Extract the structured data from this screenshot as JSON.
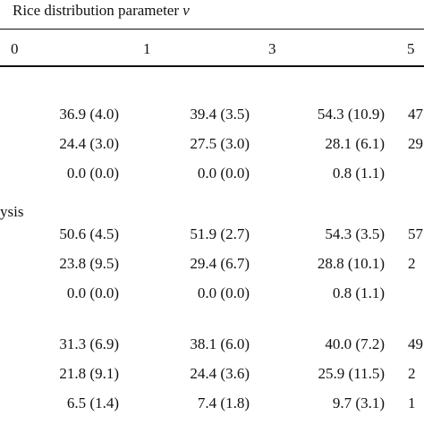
{
  "table": {
    "caption": "Rice distribution parameter ",
    "caption_var": "v",
    "header": [
      "0",
      "1",
      "3",
      "5"
    ],
    "sections": [
      {
        "rows": [
          [
            "36.9 (4.0)",
            "39.4 (3.5)",
            "54.3 (10.9)",
            "47"
          ],
          [
            "24.4 (3.0)",
            "27.5 (3.0)",
            "28.1 (6.1)",
            "29"
          ],
          [
            "0.0 (0.0)",
            "0.0 (0.0)",
            "0.8 (1.1)"
          ]
        ]
      },
      {
        "label": "ysis",
        "rows": [
          [
            "50.6 (4.5)",
            "51.9 (2.7)",
            "54.3 (3.5)",
            "57"
          ],
          [
            "23.8 (9.5)",
            "29.4 (6.7)",
            "28.8 (10.1)",
            "2"
          ],
          [
            "0.0 (0.0)",
            "0.0 (0.0)",
            "0.8 (1.1)"
          ]
        ]
      },
      {
        "rows": [
          [
            "31.3 (6.9)",
            "38.1 (6.0)",
            "40.0 (7.2)",
            "49"
          ],
          [
            "21.8 (9.1)",
            "24.4 (3.6)",
            "25.9 (11.5)",
            "2"
          ],
          [
            "6.5 (1.4)",
            "7.4 (1.8)",
            "9.7 (3.1)",
            "1"
          ]
        ]
      }
    ]
  }
}
